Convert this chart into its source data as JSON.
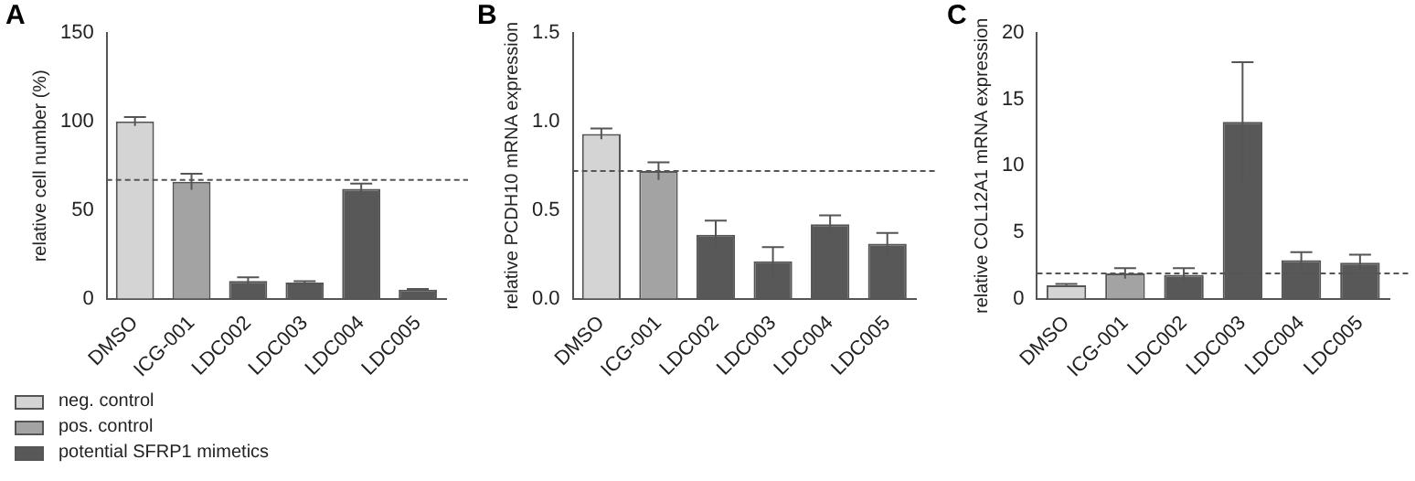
{
  "chart_data": [
    {
      "type": "bar",
      "title": "A",
      "ylabel": "relative cell number (%)",
      "categories": [
        "DMSO",
        "ICG-001",
        "LDC002",
        "LDC003",
        "LDC004",
        "LDC005"
      ],
      "series": [
        {
          "name": "neg. control",
          "color": "#d4d4d4",
          "values": [
            100,
            null,
            null,
            null,
            null,
            null
          ],
          "errors": [
            2.5,
            null,
            null,
            null,
            null,
            null
          ]
        },
        {
          "name": "pos. control",
          "color": "#a3a3a3",
          "values": [
            null,
            66,
            null,
            null,
            null,
            null
          ],
          "errors": [
            null,
            4.5,
            null,
            null,
            null,
            null
          ]
        },
        {
          "name": "potential SFRP1 mimetics",
          "color": "#585858",
          "values": [
            null,
            null,
            10,
            9,
            62,
            5
          ],
          "errors": [
            null,
            null,
            2,
            0.8,
            3,
            0.5
          ]
        }
      ],
      "ylim": [
        0,
        150
      ],
      "yticks": [
        0,
        50,
        100,
        150
      ],
      "ref_lines": [
        {
          "axis": "y",
          "value": 67,
          "color": "#555555",
          "line_style": "dashed"
        }
      ],
      "legend": "bottom left"
    },
    {
      "type": "bar",
      "title": "B",
      "ylabel": "relative PCDH10 mRNA expression",
      "categories": [
        "DMSO",
        "ICG-001",
        "LDC002",
        "LDC003",
        "LDC004",
        "LDC005"
      ],
      "series": [
        {
          "color": "#d4d4d4",
          "values": [
            0.93,
            null,
            null,
            null,
            null,
            null
          ],
          "errors": [
            0.03,
            null,
            null,
            null,
            null,
            null
          ]
        },
        {
          "color": "#a3a3a3",
          "values": [
            null,
            0.72,
            null,
            null,
            null,
            null
          ],
          "errors": [
            null,
            0.05,
            null,
            null,
            null,
            null
          ]
        },
        {
          "color": "#585858",
          "values": [
            null,
            null,
            0.36,
            0.21,
            0.42,
            0.31
          ],
          "errors": [
            null,
            null,
            0.08,
            0.08,
            0.05,
            0.06
          ]
        }
      ],
      "ylim": [
        0,
        1.5
      ],
      "yticks": [
        {
          "value": 0,
          "label": "0.0"
        },
        {
          "value": 0.5,
          "label": "0.5"
        },
        {
          "value": 1,
          "label": "1.0"
        },
        {
          "value": 1.5,
          "label": "1.5"
        }
      ],
      "ref_lines": [
        {
          "axis": "y",
          "value": 0.72,
          "color": "#555555",
          "line_style": "dashed"
        }
      ]
    },
    {
      "type": "bar",
      "title": "C",
      "ylabel": "relative COL12A1 mRNA expression",
      "categories": [
        "DMSO",
        "ICG-001",
        "LDC002",
        "LDC003",
        "LDC004",
        "LDC005"
      ],
      "series": [
        {
          "color": "#d4d4d4",
          "values": [
            1.0,
            null,
            null,
            null,
            null,
            null
          ],
          "errors": [
            0.1,
            null,
            null,
            null,
            null,
            null
          ]
        },
        {
          "color": "#a3a3a3",
          "values": [
            null,
            1.9,
            null,
            null,
            null,
            null
          ],
          "errors": [
            null,
            0.4,
            null,
            null,
            null,
            null
          ]
        },
        {
          "color": "#585858",
          "values": [
            null,
            null,
            1.8,
            13.3,
            2.9,
            2.7
          ],
          "errors": [
            null,
            null,
            0.5,
            4.5,
            0.6,
            0.6
          ]
        }
      ],
      "ylim": [
        0,
        20
      ],
      "yticks": [
        0,
        5,
        10,
        15,
        20
      ],
      "ref_lines": [
        {
          "axis": "y",
          "value": 1.9,
          "color": "#555555",
          "line_style": "dashed"
        }
      ]
    }
  ]
}
